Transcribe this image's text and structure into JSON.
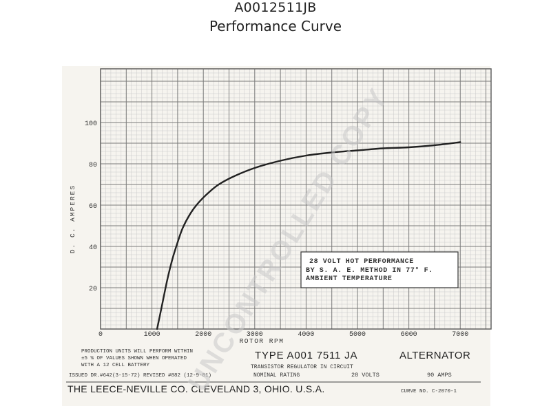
{
  "header": {
    "title_line1": "A0012511JB",
    "title_line2": "Performance Curve"
  },
  "chart_data": {
    "type": "line",
    "title": "",
    "xlabel": "ROTOR RPM",
    "ylabel": "D. C. AMPERES",
    "xlim": [
      0,
      7600
    ],
    "ylim": [
      0,
      126
    ],
    "x_ticks": [
      0,
      1000,
      2000,
      3000,
      4000,
      5000,
      6000,
      7000
    ],
    "x_tick_labels": [
      "0",
      "1000",
      "2000",
      "3000",
      "4000",
      "5000",
      "6000",
      "7000"
    ],
    "y_ticks": [
      20,
      40,
      60,
      80,
      100
    ],
    "y_tick_labels": [
      "20",
      "40",
      "60",
      "80",
      "100"
    ],
    "grid": true,
    "series": [
      {
        "name": "",
        "color": "#222222",
        "x": [
          1100,
          1200,
          1300,
          1400,
          1500,
          1600,
          1750,
          1900,
          2100,
          2300,
          2600,
          3000,
          3500,
          4000,
          4500,
          5000,
          5500,
          6000,
          6500,
          7000
        ],
        "y": [
          0,
          12,
          24,
          34,
          42,
          49,
          56,
          61,
          66,
          70,
          74,
          78,
          81.5,
          84,
          85.5,
          86.5,
          87.5,
          88,
          89,
          90.5
        ]
      }
    ],
    "annotation": {
      "line1": "28 VOLT HOT PERFORMANCE",
      "line2": "BY S. A. E. METHOD IN 77° F.",
      "line3": "AMBIENT TEMPERATURE"
    }
  },
  "footer": {
    "production_note_1": "PRODUCTION UNITS WILL PERFORM WITHIN",
    "production_note_2": "±5 % OF VALUES SHOWN WHEN OPERATED",
    "production_note_3": "WITH A 12 CELL BATTERY",
    "type_label": "TYPE A001 7511 JA",
    "alternator_label": "ALTERNATOR",
    "regulator_note": "TRANSISTOR REGULATOR IN CIRCUIT",
    "issued": "ISSUED DR.#642(3-15-72) REVISED #882 (12-9-81)",
    "nominal_rating_label": "NOMINAL RATING",
    "volts": "28 VOLTS",
    "amps": "90 AMPS",
    "company": "THE LEECE-NEVILLE CO. CLEVELAND 3, OHIO. U.S.A.",
    "curve_no": "CURVE NO. C-2070-1"
  },
  "watermark": {
    "text": "UNCONTROLLED COPY"
  },
  "colors": {
    "paper": "#f6f4ef",
    "grid_major": "#7a7a7a",
    "grid_minor": "#c9c9c9",
    "curve": "#222222",
    "watermark": "#d4d4d4"
  }
}
